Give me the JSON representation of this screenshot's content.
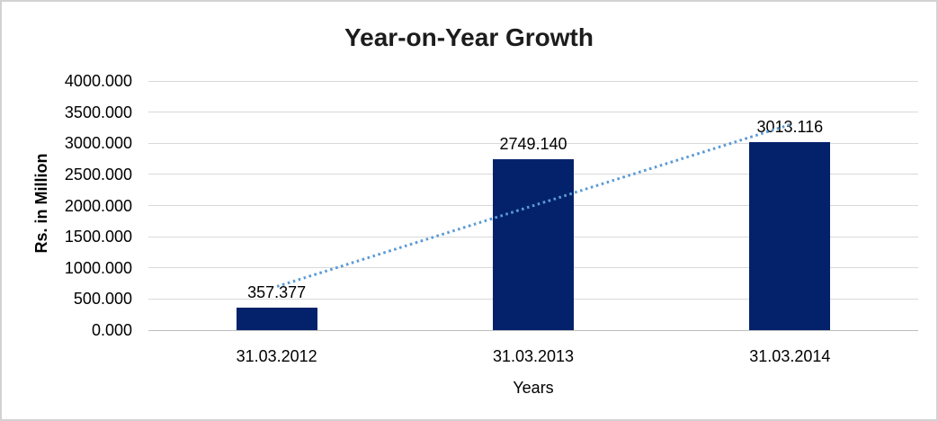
{
  "chart_data": {
    "type": "bar",
    "title": "Year-on-Year Growth",
    "xlabel": "Years",
    "ylabel": "Rs. in Million",
    "categories": [
      "31.03.2012",
      "31.03.2013",
      "31.03.2014"
    ],
    "values": [
      357.377,
      2749.14,
      3013.116
    ],
    "data_labels": [
      "357.377",
      "2749.140",
      "3013.116"
    ],
    "ylim": [
      0,
      4000
    ],
    "ytick_step": 500,
    "yticks": [
      {
        "value": 0,
        "label": "0.000"
      },
      {
        "value": 500,
        "label": "500.000"
      },
      {
        "value": 1000,
        "label": "1000.000"
      },
      {
        "value": 1500,
        "label": "1500.000"
      },
      {
        "value": 2000,
        "label": "2000.000"
      },
      {
        "value": 2500,
        "label": "2500.000"
      },
      {
        "value": 3000,
        "label": "3000.000"
      },
      {
        "value": 3500,
        "label": "3500.000"
      },
      {
        "value": 4000,
        "label": "4000.000"
      }
    ],
    "grid": true,
    "legend": "none",
    "bar_color": "#04226b",
    "gridline_color": "#d9d9d9",
    "axis_line_color": "#bfbfbf",
    "trendline": {
      "style": "dotted",
      "color": "#5B9BD5",
      "start_category_index": 0,
      "start_value": 700,
      "end_category_index": 2,
      "end_value": 3300
    }
  }
}
